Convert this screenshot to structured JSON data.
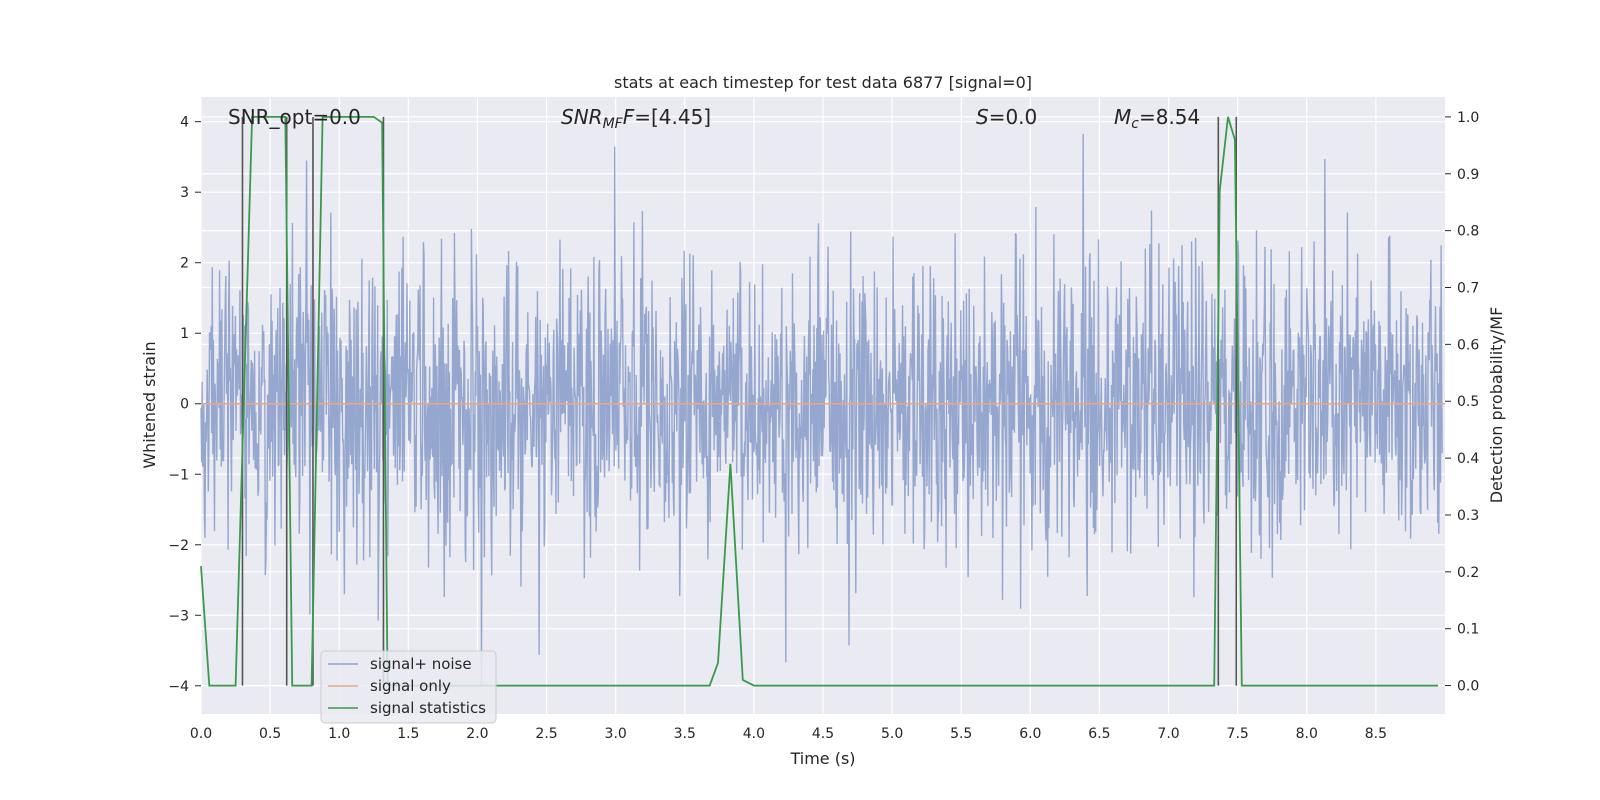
{
  "chart_data": {
    "type": "line",
    "title": "stats at each timestep for test data 6877 [signal=0]",
    "xlabel": "Time (s)",
    "ylabel": "Whitened strain",
    "ylabel_right": "Detection probability/MF",
    "xlim": [
      0.0,
      9.0
    ],
    "ylim": [
      -4.4,
      4.35
    ],
    "ylim_right": [
      -0.05,
      1.035
    ],
    "x_ticks": [
      0.0,
      0.5,
      1.0,
      1.5,
      2.0,
      2.5,
      3.0,
      3.5,
      4.0,
      4.5,
      5.0,
      5.5,
      6.0,
      6.5,
      7.0,
      7.5,
      8.0,
      8.5
    ],
    "x_tick_labels": [
      "0.0",
      "0.5",
      "1.0",
      "1.5",
      "2.0",
      "2.5",
      "3.0",
      "3.5",
      "4.0",
      "4.5",
      "5.0",
      "5.5",
      "6.0",
      "6.5",
      "7.0",
      "7.5",
      "8.0",
      "8.5"
    ],
    "y_ticks": [
      -4,
      -3,
      -2,
      -1,
      0,
      1,
      2,
      3,
      4
    ],
    "y_tick_labels": [
      "−4",
      "−3",
      "−2",
      "−1",
      "0",
      "1",
      "2",
      "3",
      "4"
    ],
    "y_ticks_right": [
      0.0,
      0.1,
      0.2,
      0.3,
      0.4,
      0.5,
      0.6,
      0.7,
      0.8,
      0.9,
      1.0
    ],
    "y_tick_labels_right": [
      "0.0",
      "0.1",
      "0.2",
      "0.3",
      "0.4",
      "0.5",
      "0.6",
      "0.7",
      "0.8",
      "0.9",
      "1.0"
    ],
    "annotations": {
      "snr_opt": "SNR_opt=0.0",
      "snr_mf_main": "SNR",
      "snr_mf_sub": "MF",
      "snr_mf_value": "=[4.45]",
      "s_main": "S",
      "s_value": "=0.0",
      "mc_main": "M",
      "mc_sub": "c",
      "mc_value": "=8.54"
    },
    "legend": [
      "signal+ noise",
      "signal only",
      "signal statistics"
    ],
    "legend_position": "lower-left",
    "colors": {
      "noise": "#8da0cb",
      "signal_only": "#e8a88a",
      "statistics": "#3a9a4a",
      "markers": "#555555",
      "background": "#eaeaf2",
      "grid": "#ffffff"
    },
    "noise_series": {
      "name": "signal+ noise",
      "description_points": "dense whitened strain noise, roughly ±1.5 typical with spikes to ±4",
      "typical_amplitude": 1.5,
      "max_amplitude": 4.0
    },
    "signal_only": {
      "name": "signal only",
      "value": 0.0
    },
    "statistics_series": {
      "name": "signal statistics",
      "x": [
        0.0,
        0.06,
        0.25,
        0.37,
        0.61,
        0.66,
        0.72,
        0.8,
        0.88,
        1.25,
        1.31,
        1.35,
        1.4,
        3.68,
        3.74,
        3.83,
        3.92,
        4.0,
        7.33,
        7.37,
        7.43,
        7.48,
        7.53,
        7.6,
        8.95
      ],
      "y": [
        0.21,
        0.0,
        0.0,
        1.0,
        1.0,
        0.0,
        0.0,
        0.0,
        1.0,
        1.0,
        0.99,
        0.0,
        0.0,
        0.0,
        0.04,
        0.39,
        0.01,
        0.0,
        0.0,
        0.87,
        1.0,
        0.96,
        0.0,
        0.0,
        0.0
      ]
    },
    "marker_lines_x": [
      0.3,
      0.62,
      0.81,
      1.32,
      7.36,
      7.49
    ]
  }
}
